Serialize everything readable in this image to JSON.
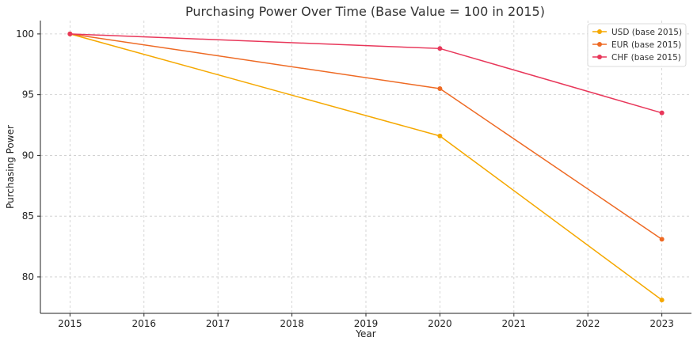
{
  "chart_data": {
    "type": "line",
    "title": "Purchasing Power Over Time (Base Value = 100 in 2015)",
    "xlabel": "Year",
    "ylabel": "Purchasing Power",
    "xlim": [
      2014.6,
      2023.4
    ],
    "ylim": [
      77.0,
      101.1
    ],
    "xticks": [
      2015,
      2016,
      2017,
      2018,
      2019,
      2020,
      2021,
      2022,
      2023
    ],
    "yticks": [
      80,
      85,
      90,
      95,
      100
    ],
    "grid": true,
    "legend_position": "top-right",
    "series": [
      {
        "name": "USD (base 2015)",
        "color": "#f5a800",
        "x": [
          2015,
          2020,
          2023
        ],
        "y": [
          100,
          91.6,
          78.1
        ]
      },
      {
        "name": "EUR (base 2015)",
        "color": "#ee6a24",
        "x": [
          2015,
          2020,
          2023
        ],
        "y": [
          100,
          95.5,
          83.1
        ]
      },
      {
        "name": "CHF (base 2015)",
        "color": "#e8375a",
        "x": [
          2015,
          2020,
          2023
        ],
        "y": [
          100,
          98.8,
          93.5
        ]
      }
    ]
  }
}
